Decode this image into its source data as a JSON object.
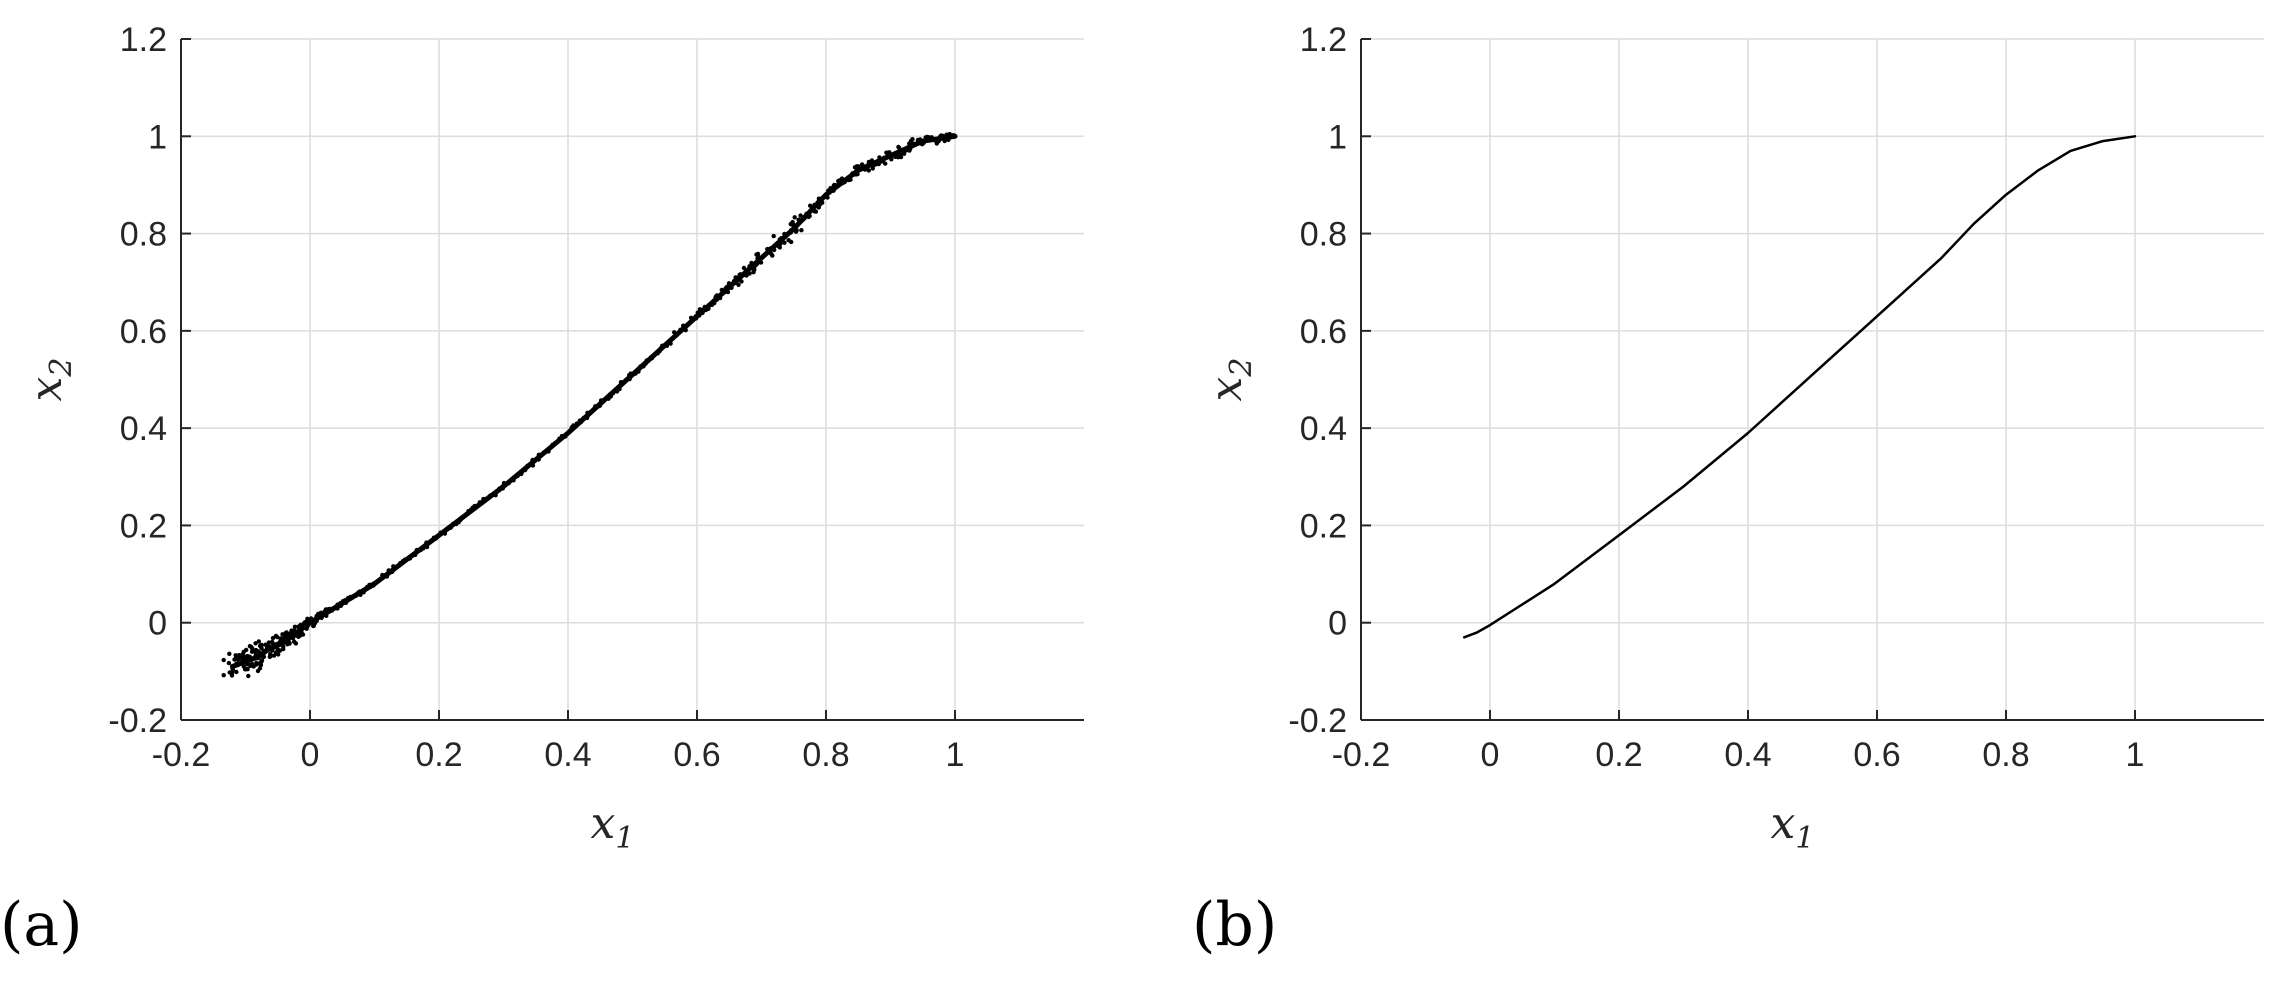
{
  "chart_data": [
    {
      "type": "scatter",
      "panel_label": "(a)",
      "xlabel": "x",
      "xlabel_sub": "1",
      "ylabel": "x",
      "ylabel_sub": "2",
      "xlim": [
        -0.2,
        1.2
      ],
      "ylim": [
        -0.2,
        1.2
      ],
      "xticks": [
        -0.2,
        0,
        0.2,
        0.4,
        0.6,
        0.8,
        1
      ],
      "xtick_labels": [
        "-0.2",
        "0",
        "0.2",
        "0.4",
        "0.6",
        "0.8",
        "1"
      ],
      "yticks": [
        -0.2,
        0,
        0.2,
        0.4,
        0.6,
        0.8,
        1,
        1.2
      ],
      "ytick_labels": [
        "-0.2",
        "0",
        "0.2",
        "0.4",
        "0.6",
        "0.8",
        "1",
        "1.2"
      ],
      "grid": true,
      "color": "#000000",
      "series": [
        {
          "x": [
            -0.12,
            -0.1,
            -0.08,
            -0.06,
            -0.04,
            -0.02,
            0,
            0.05,
            0.1,
            0.2,
            0.3,
            0.4,
            0.5,
            0.6,
            0.65,
            0.7,
            0.75,
            0.8,
            0.85,
            0.9,
            0.95,
            1
          ],
          "y": [
            -0.09,
            -0.08,
            -0.07,
            -0.05,
            -0.04,
            -0.02,
            0,
            0.04,
            0.08,
            0.18,
            0.28,
            0.39,
            0.51,
            0.63,
            0.69,
            0.75,
            0.81,
            0.88,
            0.93,
            0.96,
            0.99,
            1
          ],
          "spread": [
            0.025,
            0.025,
            0.022,
            0.02,
            0.016,
            0.012,
            0.008,
            0.005,
            0.004,
            0.004,
            0.004,
            0.004,
            0.005,
            0.006,
            0.007,
            0.012,
            0.014,
            0.006,
            0.008,
            0.011,
            0.01,
            0.006
          ]
        }
      ]
    },
    {
      "type": "line",
      "panel_label": "(b)",
      "xlabel": "x",
      "xlabel_sub": "1",
      "ylabel": "x",
      "ylabel_sub": "2",
      "xlim": [
        -0.2,
        1.2
      ],
      "ylim": [
        -0.2,
        1.2
      ],
      "xticks": [
        -0.2,
        0,
        0.2,
        0.4,
        0.6,
        0.8,
        1
      ],
      "xtick_labels": [
        "-0.2",
        "0",
        "0.2",
        "0.4",
        "0.6",
        "0.8",
        "1"
      ],
      "yticks": [
        -0.2,
        0,
        0.2,
        0.4,
        0.6,
        0.8,
        1,
        1.2
      ],
      "ytick_labels": [
        "-0.2",
        "0",
        "0.2",
        "0.4",
        "0.6",
        "0.8",
        "1",
        "1.2"
      ],
      "grid": true,
      "color": "#000000",
      "series": [
        {
          "x": [
            -0.04,
            -0.02,
            0,
            0.1,
            0.2,
            0.3,
            0.4,
            0.5,
            0.6,
            0.7,
            0.75,
            0.8,
            0.85,
            0.9,
            0.95,
            1
          ],
          "y": [
            -0.03,
            -0.02,
            -0.005,
            0.08,
            0.18,
            0.28,
            0.39,
            0.51,
            0.63,
            0.75,
            0.82,
            0.88,
            0.93,
            0.97,
            0.99,
            1
          ]
        }
      ]
    }
  ]
}
